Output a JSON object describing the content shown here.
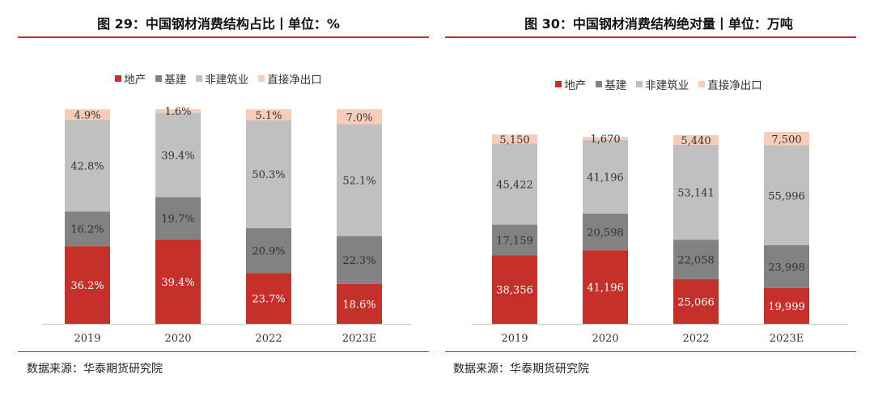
{
  "colors": {
    "real_estate": "#c6302b",
    "infrastructure": "#828282",
    "non_construction": "#c0c0c0",
    "net_export": "#f6cdb9",
    "accent": "#c6302b"
  },
  "chart_data": [
    {
      "type": "bar",
      "stacked": true,
      "title": "图 29：中国钢材消费结构占比丨单位：%",
      "categories": [
        "2019",
        "2020",
        "2022",
        "2023E"
      ],
      "series": [
        {
          "name": "地产",
          "values": [
            36.2,
            39.4,
            23.7,
            18.6
          ],
          "labels": [
            "36.2%",
            "39.4%",
            "23.7%",
            "18.6%"
          ]
        },
        {
          "name": "基建",
          "values": [
            16.2,
            19.7,
            20.9,
            22.3
          ],
          "labels": [
            "16.2%",
            "19.7%",
            "20.9%",
            "22.3%"
          ]
        },
        {
          "name": "非建筑业",
          "values": [
            42.8,
            39.4,
            50.3,
            52.1
          ],
          "labels": [
            "42.8%",
            "39.4%",
            "50.3%",
            "52.1%"
          ]
        },
        {
          "name": "直接净出口",
          "values": [
            4.9,
            1.6,
            5.1,
            7.0
          ],
          "labels": [
            "4.9%",
            "1.6%",
            "5.1%",
            "7.0%"
          ]
        }
      ],
      "legend_position": "top",
      "grid": false,
      "source": "数据来源：华泰期货研究院"
    },
    {
      "type": "bar",
      "stacked": true,
      "title": "图 30：中国钢材消费结构绝对量丨单位：万吨",
      "categories": [
        "2019",
        "2020",
        "2022",
        "2023E"
      ],
      "series": [
        {
          "name": "地产",
          "values": [
            38356,
            41196,
            25066,
            19999
          ],
          "labels": [
            "38,356",
            "41,196",
            "25,066",
            "19,999"
          ]
        },
        {
          "name": "基建",
          "values": [
            17159,
            20598,
            22058,
            23998
          ],
          "labels": [
            "17,159",
            "20,598",
            "22,058",
            "23,998"
          ]
        },
        {
          "name": "非建筑业",
          "values": [
            45422,
            41196,
            53141,
            55996
          ],
          "labels": [
            "45,422",
            "41,196",
            "53,141",
            "55,996"
          ]
        },
        {
          "name": "直接净出口",
          "values": [
            5150,
            1670,
            5440,
            7500
          ],
          "labels": [
            "5,150",
            "1,670",
            "5,440",
            "7,500"
          ]
        }
      ],
      "legend_position": "top",
      "grid": false,
      "source": "数据来源：华泰期货研究院"
    }
  ]
}
